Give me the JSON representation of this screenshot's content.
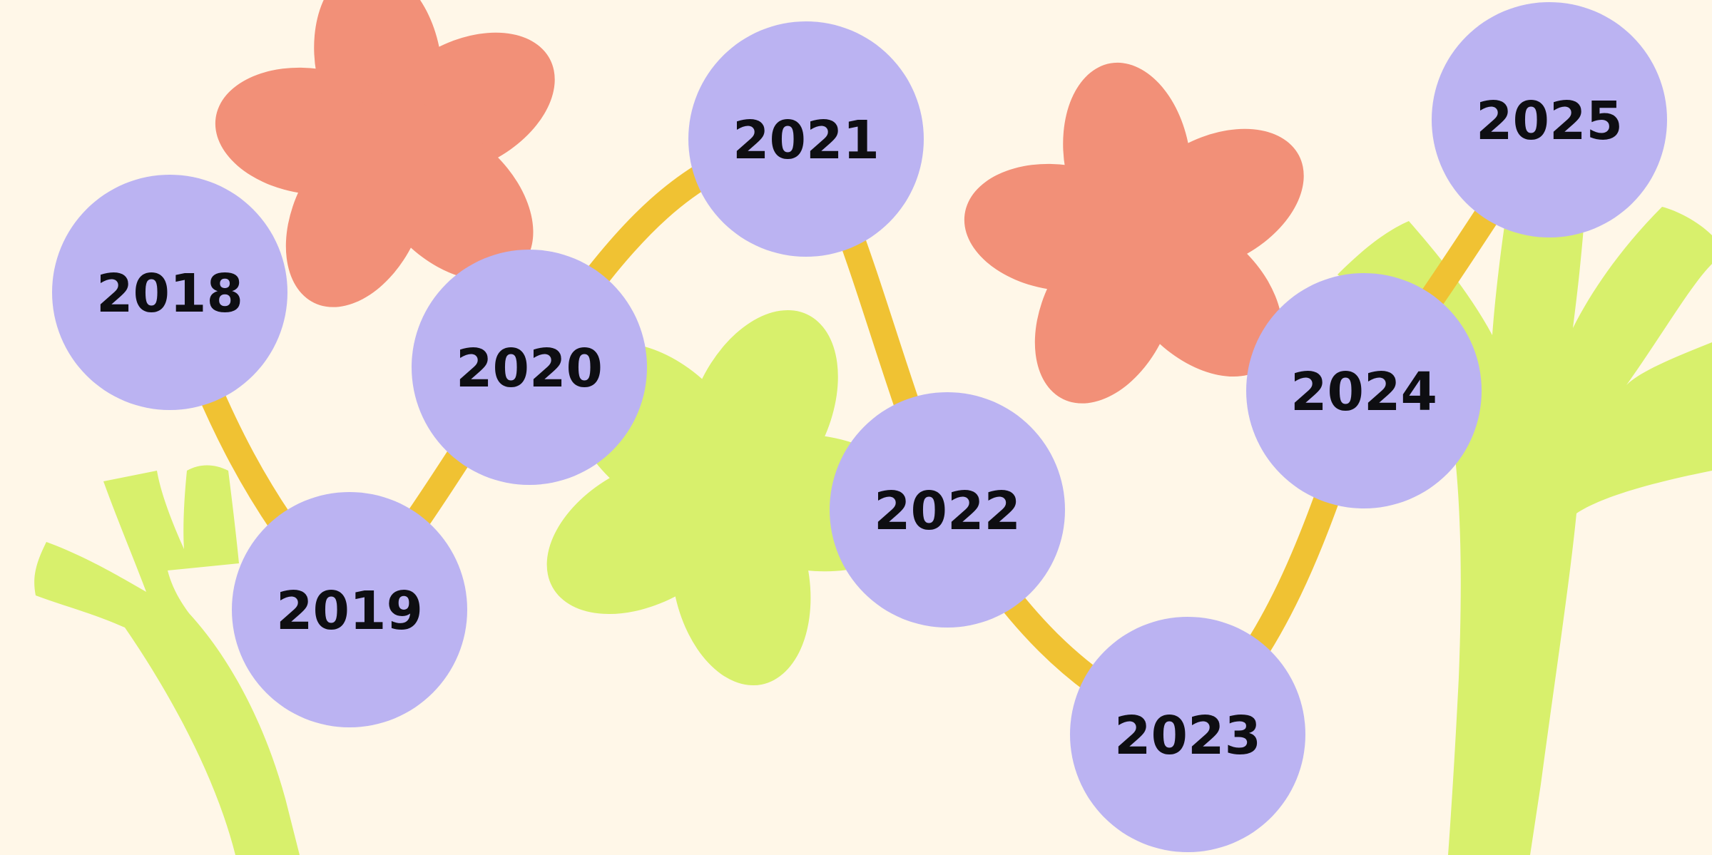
{
  "colors": {
    "background": "#FFF7E8",
    "node_fill": "#BBB3F2",
    "connector": "#F0C233",
    "flower_coral": "#F29078",
    "plant_lime": "#D8F06C",
    "label_text": "#0E0E12"
  },
  "timeline": {
    "nodes": [
      {
        "label": "2018"
      },
      {
        "label": "2019"
      },
      {
        "label": "2020"
      },
      {
        "label": "2021"
      },
      {
        "label": "2022"
      },
      {
        "label": "2023"
      },
      {
        "label": "2024"
      },
      {
        "label": "2025"
      }
    ]
  },
  "decorations": [
    {
      "type": "flower",
      "color_name": "coral"
    },
    {
      "type": "flower",
      "color_name": "coral"
    },
    {
      "type": "flower",
      "color_name": "lime"
    },
    {
      "type": "plant",
      "color_name": "lime"
    },
    {
      "type": "plant",
      "color_name": "lime"
    }
  ]
}
